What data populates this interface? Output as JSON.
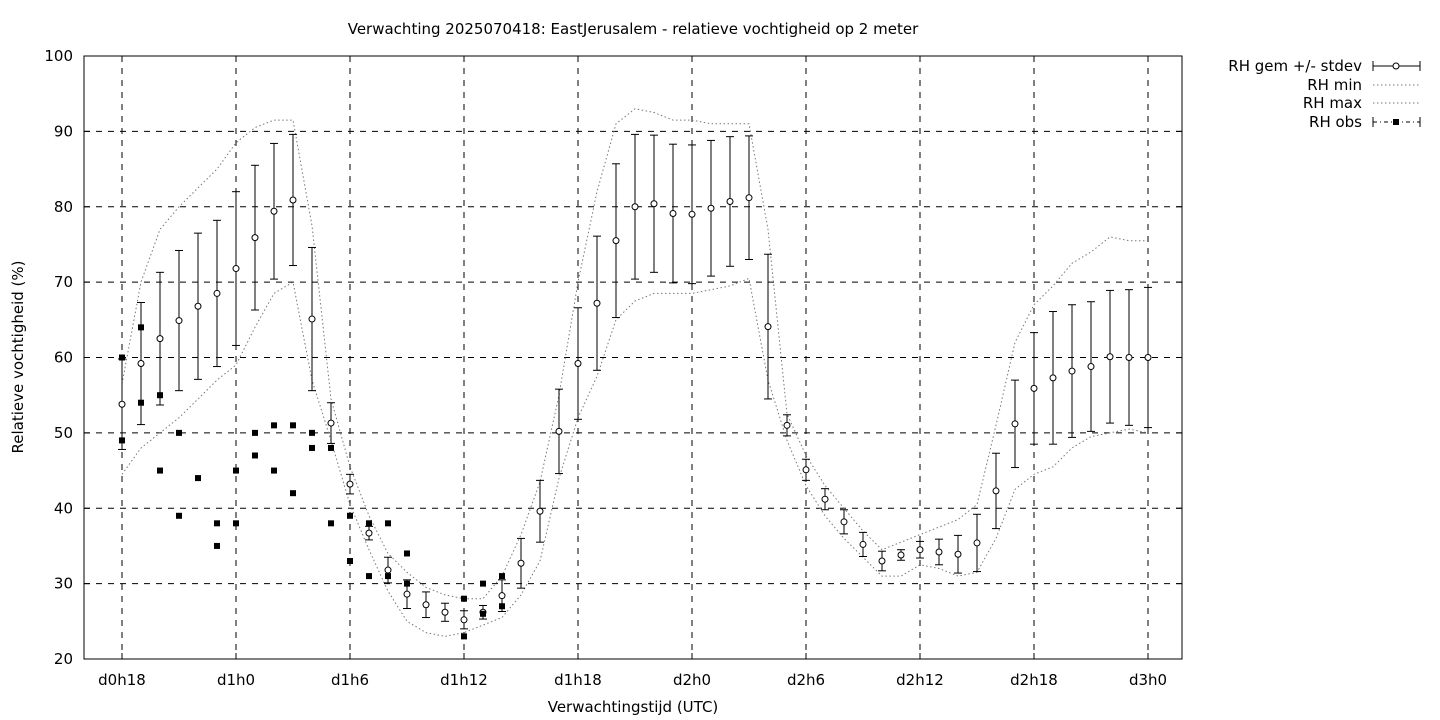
{
  "chart_data": {
    "type": "scatter",
    "title": "Verwachting 2025070418: EastJerusalem - relatieve vochtigheid op 2 meter",
    "xlabel": "Verwachtingstijd (UTC)",
    "ylabel": "Relatieve vochtigheid (%)",
    "ylim": [
      20,
      100
    ],
    "xlim": [
      -2,
      56
    ],
    "grid": true,
    "legend_position": "outside-top-right",
    "x_ticks": [
      {
        "x": 0,
        "label": "d0h18"
      },
      {
        "x": 6,
        "label": "d1h0"
      },
      {
        "x": 12,
        "label": "d1h6"
      },
      {
        "x": 18,
        "label": "d1h12"
      },
      {
        "x": 24,
        "label": "d1h18"
      },
      {
        "x": 30,
        "label": "d2h0"
      },
      {
        "x": 36,
        "label": "d2h6"
      },
      {
        "x": 42,
        "label": "d2h12"
      },
      {
        "x": 48,
        "label": "d2h18"
      },
      {
        "x": 54,
        "label": "d3h0"
      }
    ],
    "y_ticks": [
      20,
      30,
      40,
      50,
      60,
      70,
      80,
      90,
      100
    ],
    "legend": [
      {
        "key": "mean",
        "label": "RH gem +/- stdev"
      },
      {
        "key": "min",
        "label": "RH min"
      },
      {
        "key": "max",
        "label": "RH max"
      },
      {
        "key": "obs",
        "label": "RH obs"
      }
    ],
    "mean": {
      "name": "RH gem +/- stdev",
      "x": [
        0,
        1,
        2,
        3,
        4,
        5,
        6,
        7,
        8,
        9,
        10,
        11,
        12,
        13,
        14,
        15,
        16,
        17,
        18,
        19,
        20,
        21,
        22,
        23,
        24,
        25,
        26,
        27,
        28,
        29,
        30,
        31,
        32,
        33,
        34,
        35,
        36,
        37,
        38,
        39,
        40,
        41,
        42,
        43,
        44,
        45,
        46,
        47,
        48,
        49,
        50,
        51,
        52,
        53,
        54
      ],
      "y": [
        53.8,
        59.2,
        62.5,
        64.9,
        66.8,
        68.5,
        71.8,
        75.9,
        79.4,
        80.9,
        65.1,
        51.3,
        43.2,
        36.7,
        31.8,
        28.6,
        27.2,
        26.2,
        25.2,
        26.2,
        28.4,
        32.7,
        39.6,
        50.2,
        59.2,
        67.2,
        75.5,
        80.0,
        80.4,
        79.1,
        79.0,
        79.8,
        80.7,
        81.2,
        64.1,
        51.0,
        45.1,
        41.2,
        38.2,
        35.2,
        33.0,
        33.8,
        34.5,
        34.2,
        33.9,
        35.4,
        42.3,
        51.2,
        55.9,
        57.3,
        58.2,
        58.8,
        60.1,
        60.0,
        60.0
      ],
      "stdev": [
        6.0,
        8.1,
        8.8,
        9.3,
        9.7,
        9.7,
        10.2,
        9.6,
        9.0,
        8.7,
        9.5,
        2.7,
        1.3,
        0.9,
        1.7,
        1.9,
        1.7,
        1.2,
        1.2,
        0.9,
        2.1,
        3.3,
        4.1,
        5.6,
        7.4,
        8.9,
        10.2,
        9.6,
        9.1,
        9.2,
        9.2,
        9.0,
        8.6,
        8.2,
        9.6,
        1.4,
        1.4,
        1.4,
        1.6,
        1.6,
        1.3,
        0.7,
        1.1,
        1.7,
        2.5,
        3.8,
        5.0,
        5.8,
        7.4,
        8.8,
        8.8,
        8.6,
        8.8,
        9.0,
        9.3
      ]
    },
    "min": {
      "name": "RH min",
      "x": [
        0,
        1,
        2,
        3,
        4,
        5,
        6,
        7,
        8,
        9,
        10,
        11,
        12,
        13,
        14,
        15,
        16,
        17,
        18,
        19,
        20,
        21,
        22,
        23,
        24,
        25,
        26,
        27,
        28,
        29,
        30,
        31,
        32,
        33,
        34,
        35,
        36,
        37,
        38,
        39,
        40,
        41,
        42,
        43,
        44,
        45,
        46,
        47,
        48,
        49,
        50,
        51,
        52,
        53,
        54
      ],
      "y": [
        44.5,
        48.0,
        50.0,
        52.0,
        54.5,
        57.0,
        59.0,
        64.0,
        68.5,
        70.0,
        57.0,
        49.0,
        40.5,
        34.5,
        29.0,
        25.0,
        23.5,
        23.0,
        23.5,
        24.5,
        25.5,
        28.5,
        33.0,
        44.0,
        52.0,
        57.5,
        65.0,
        67.5,
        68.5,
        68.5,
        68.5,
        69.0,
        69.5,
        70.5,
        57.0,
        49.0,
        43.0,
        39.0,
        36.0,
        33.5,
        31.0,
        31.0,
        32.5,
        32.0,
        31.0,
        31.5,
        36.0,
        42.5,
        44.5,
        45.5,
        48.0,
        49.5,
        50.0,
        50.5,
        50.0
      ]
    },
    "max": {
      "name": "RH max",
      "x": [
        0,
        1,
        2,
        3,
        4,
        5,
        6,
        7,
        8,
        9,
        10,
        11,
        12,
        13,
        14,
        15,
        16,
        17,
        18,
        19,
        20,
        21,
        22,
        23,
        24,
        25,
        26,
        27,
        28,
        29,
        30,
        31,
        32,
        33,
        34,
        35,
        36,
        37,
        38,
        39,
        40,
        41,
        42,
        43,
        44,
        45,
        46,
        47,
        48,
        49,
        50,
        51,
        52,
        53,
        54
      ],
      "y": [
        56.5,
        70.0,
        77.0,
        80.0,
        82.5,
        85.0,
        88.5,
        90.5,
        91.5,
        91.5,
        77.5,
        54.5,
        45.5,
        39.0,
        34.0,
        31.5,
        29.5,
        28.5,
        28.0,
        28.0,
        31.0,
        36.5,
        43.5,
        55.0,
        70.0,
        82.0,
        91.0,
        93.0,
        92.5,
        91.5,
        91.5,
        91.0,
        91.0,
        91.0,
        77.0,
        52.5,
        47.0,
        43.0,
        40.0,
        37.0,
        34.5,
        35.5,
        36.5,
        37.5,
        38.5,
        40.5,
        51.0,
        62.0,
        67.0,
        69.5,
        72.5,
        74.0,
        76.0,
        75.5,
        75.5
      ]
    },
    "obs": {
      "name": "RH obs",
      "points": [
        [
          0,
          60
        ],
        [
          0,
          49
        ],
        [
          1,
          64
        ],
        [
          1,
          54
        ],
        [
          2,
          55
        ],
        [
          2,
          45
        ],
        [
          3,
          50
        ],
        [
          3,
          39
        ],
        [
          4,
          44
        ],
        [
          5,
          38
        ],
        [
          5,
          35
        ],
        [
          6,
          45
        ],
        [
          6,
          38
        ],
        [
          7,
          50
        ],
        [
          7,
          47
        ],
        [
          8,
          51
        ],
        [
          8,
          45
        ],
        [
          9,
          51
        ],
        [
          9,
          42
        ],
        [
          10,
          50
        ],
        [
          10,
          48
        ],
        [
          11,
          48
        ],
        [
          11,
          38
        ],
        [
          12,
          39
        ],
        [
          12,
          33
        ],
        [
          13,
          38
        ],
        [
          13,
          31
        ],
        [
          14,
          38
        ],
        [
          14,
          31
        ],
        [
          15,
          34
        ],
        [
          15,
          30
        ],
        [
          18,
          28
        ],
        [
          18,
          23
        ],
        [
          19,
          30
        ],
        [
          19,
          26
        ],
        [
          20,
          31
        ],
        [
          20,
          27
        ]
      ]
    }
  }
}
